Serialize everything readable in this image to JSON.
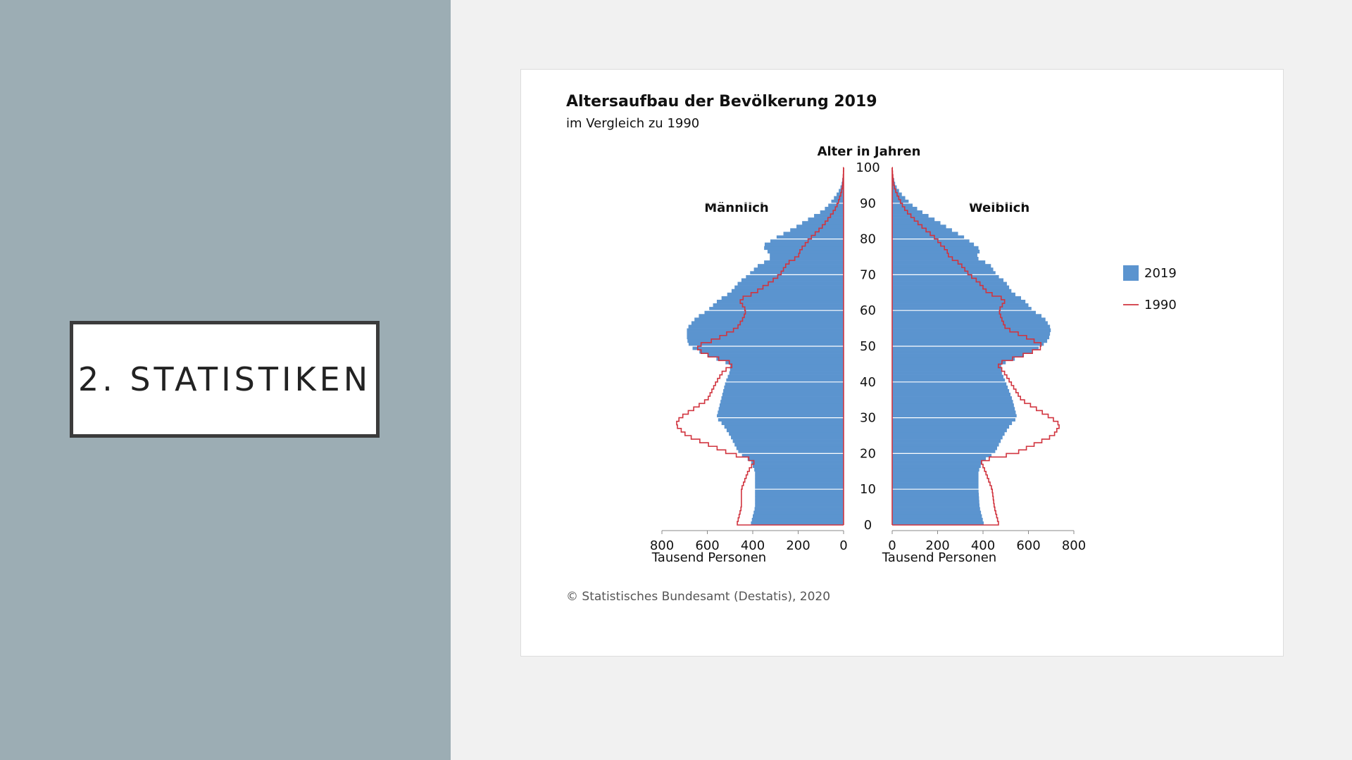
{
  "slide": {
    "title": "2. STATISTIKEN"
  },
  "colors": {
    "left_panel": "#9cadb4",
    "bar_2019": "#5b94cf",
    "line_1990": "#d1343f"
  },
  "chart_data": {
    "type": "bar",
    "title": "Altersaufbau der Bevölkerung 2019",
    "subtitle": "im Vergleich zu 1990",
    "y_axis_label": "Alter in Jahren",
    "male_label": "Männlich",
    "female_label": "Weiblich",
    "x_unit_label": "Tausend Personen",
    "age_ticks": [
      "0",
      "10",
      "20",
      "30",
      "40",
      "50",
      "60",
      "70",
      "80",
      "90",
      "100"
    ],
    "x_ticks_left": [
      "800",
      "600",
      "400",
      "200",
      "0"
    ],
    "x_ticks_right": [
      "0",
      "200",
      "400",
      "600",
      "800"
    ],
    "xlim": [
      0,
      800
    ],
    "ylim": [
      0,
      100
    ],
    "legend": [
      {
        "label": "2019",
        "kind": "bar"
      },
      {
        "label": "1990",
        "kind": "line"
      }
    ],
    "legend_position": "right",
    "source": "© Statistisches Bundesamt (Destatis), 2020",
    "age_points": [
      0,
      5,
      10,
      15,
      18,
      20,
      25,
      28,
      30,
      35,
      40,
      43,
      45,
      48,
      50,
      52,
      55,
      58,
      60,
      63,
      65,
      68,
      70,
      73,
      74,
      75,
      77,
      78,
      80,
      83,
      85,
      88,
      90,
      93,
      95,
      98,
      100
    ],
    "male_2019": [
      410,
      390,
      390,
      390,
      410,
      460,
      500,
      530,
      560,
      540,
      520,
      500,
      500,
      620,
      680,
      690,
      690,
      650,
      600,
      550,
      500,
      460,
      420,
      370,
      330,
      320,
      340,
      360,
      310,
      220,
      170,
      90,
      60,
      25,
      10,
      2,
      0
    ],
    "female_2019": [
      405,
      385,
      380,
      380,
      400,
      450,
      490,
      520,
      550,
      530,
      500,
      480,
      480,
      600,
      660,
      690,
      700,
      670,
      620,
      580,
      530,
      500,
      460,
      430,
      390,
      370,
      390,
      370,
      330,
      250,
      200,
      120,
      80,
      35,
      15,
      3,
      0
    ],
    "male_1990": [
      470,
      450,
      450,
      420,
      390,
      500,
      690,
      740,
      720,
      600,
      560,
      530,
      480,
      620,
      650,
      560,
      470,
      440,
      430,
      460,
      390,
      320,
      280,
      250,
      230,
      200,
      190,
      175,
      150,
      100,
      75,
      40,
      25,
      10,
      4,
      1,
      0
    ],
    "female_1990": [
      470,
      450,
      440,
      410,
      390,
      540,
      710,
      740,
      700,
      570,
      520,
      490,
      460,
      600,
      670,
      610,
      500,
      480,
      470,
      500,
      420,
      380,
      340,
      300,
      280,
      250,
      240,
      220,
      195,
      140,
      105,
      60,
      40,
      18,
      7,
      2,
      0
    ]
  }
}
